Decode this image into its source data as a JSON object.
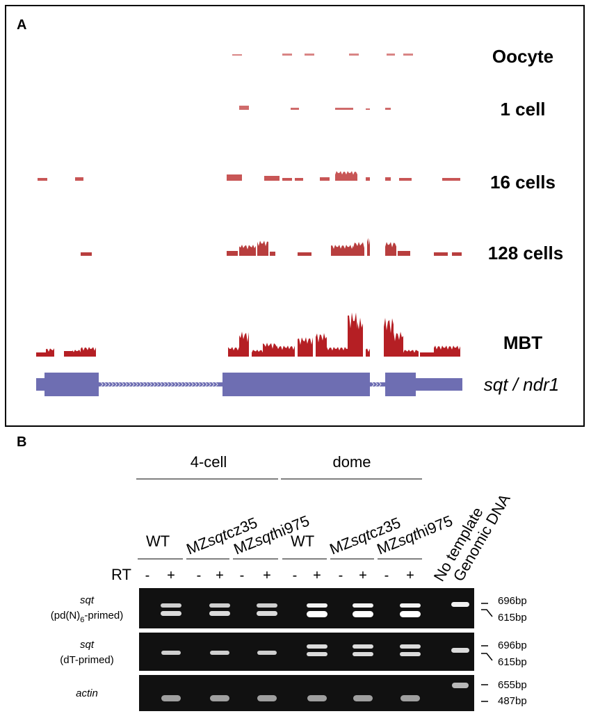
{
  "panel_a": {
    "label": "A",
    "tracks": [
      {
        "label": "Oocyte",
        "color": "#d98585"
      },
      {
        "label": "1 cell",
        "color": "#cf6b6b"
      },
      {
        "label": "16 cells",
        "color": "#c85656"
      },
      {
        "label": "128 cells",
        "color": "#b83e3e"
      },
      {
        "label": "MBT",
        "color": "#b51f24"
      }
    ],
    "gene": {
      "label": "sqt / ndr1",
      "color": "#6e6eb2"
    }
  },
  "panel_b": {
    "label": "B",
    "group_labels": [
      "4-cell",
      "dome"
    ],
    "genotypes": [
      {
        "prefix": "WT",
        "italic": "",
        "suffix": ""
      },
      {
        "prefix": "MZ",
        "italic": "sqt",
        "suffix": "cz35"
      },
      {
        "prefix": "MZ",
        "italic": "sqt",
        "suffix": "hi975"
      },
      {
        "prefix": "WT",
        "italic": "",
        "suffix": ""
      },
      {
        "prefix": "MZ",
        "italic": "sqt",
        "suffix": "cz35"
      },
      {
        "prefix": "MZ",
        "italic": "sqt",
        "suffix": "hi975"
      }
    ],
    "controls": [
      "No template",
      "Genomic DNA"
    ],
    "rt_label": "RT",
    "rt_signs": [
      "-",
      "+",
      "-",
      "+",
      "-",
      "+",
      "-",
      "+",
      "-",
      "+",
      "-",
      "+"
    ],
    "gels": [
      {
        "gene": "sqt",
        "primer": "(pd(N)",
        "primer_sub": "6",
        "primer_end": "-primed)",
        "bands": [
          "696bp",
          "615bp"
        ]
      },
      {
        "gene": "sqt",
        "primer": "(dT-primed)",
        "primer_sub": "",
        "primer_end": "",
        "bands": [
          "696bp",
          "615bp"
        ]
      },
      {
        "gene": "actin",
        "primer": "",
        "primer_sub": "",
        "primer_end": "",
        "bands": [
          "655bp",
          "487bp"
        ]
      }
    ]
  }
}
